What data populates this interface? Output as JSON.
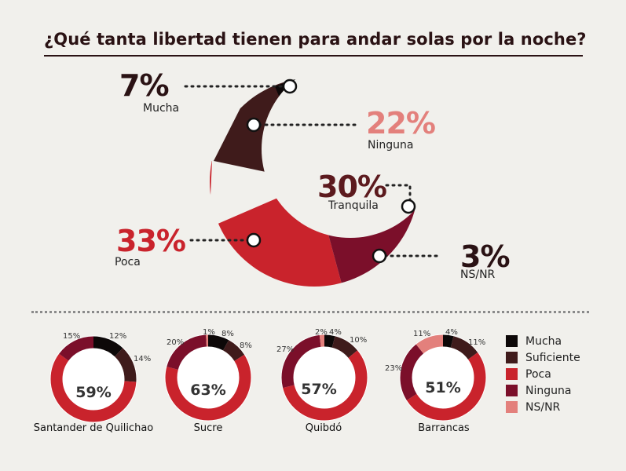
{
  "title": "¿Qué tanta libertad tienen para andar solas por la noche?",
  "colors": {
    "mucha": "#0d0808",
    "suficiente": "#3f1b1b",
    "poca": "#c9232c",
    "ninguna": "#7b0f2a",
    "nsnr": "#e3807c",
    "tranquila": "#5c1a1e",
    "title": "#2a1214"
  },
  "main": {
    "labels": {
      "mucha_pct": "7%",
      "mucha": "Mucha",
      "ninguna_pct": "22%",
      "ninguna": "Ninguna",
      "tranquila_pct": "30%",
      "tranquila": "Tranquila",
      "poca_pct": "33%",
      "poca": "Poca",
      "nsnr_pct": "3%",
      "nsnr": "NS/NR"
    }
  },
  "legend": [
    {
      "label": "Mucha",
      "color": "#0d0808"
    },
    {
      "label": "Suficiente",
      "color": "#3f1b1b"
    },
    {
      "label": "Poca",
      "color": "#c9232c"
    },
    {
      "label": "Ninguna",
      "color": "#7b0f2a"
    },
    {
      "label": "NS/NR",
      "color": "#e3807c"
    }
  ],
  "chart_data": [
    {
      "type": "pie",
      "title": "¿Qué tanta libertad tienen para andar solas por la noche?",
      "categories": [
        "Mucha",
        "Ninguna",
        "Tranquila",
        "Poca",
        "NS/NR"
      ],
      "values": [
        7,
        22,
        30,
        33,
        3
      ]
    },
    {
      "type": "pie",
      "title": "Santander de Quilichao",
      "categories": [
        "Mucha",
        "Suficiente",
        "Poca",
        "Ninguna",
        "NS/NR"
      ],
      "values": [
        12,
        14,
        59,
        15,
        0
      ],
      "labels": {
        "mucha": "12%",
        "suficiente": "14%",
        "ninguna": "15%",
        "center": "59%"
      }
    },
    {
      "type": "pie",
      "title": "Sucre",
      "categories": [
        "Mucha",
        "Suficiente",
        "Poca",
        "Ninguna",
        "NS/NR"
      ],
      "values": [
        8,
        8,
        63,
        20,
        1
      ],
      "labels": {
        "nsnr": "1%",
        "mucha": "8%",
        "suficiente": "8%",
        "ninguna": "20%",
        "center": "63%"
      }
    },
    {
      "type": "pie",
      "title": "Quibdó",
      "categories": [
        "Mucha",
        "Suficiente",
        "Poca",
        "Ninguna",
        "NS/NR"
      ],
      "values": [
        4,
        10,
        57,
        27,
        2
      ],
      "labels": {
        "nsnr": "2%",
        "mucha": "4%",
        "suficiente": "10%",
        "ninguna": "27%",
        "center": "57%"
      }
    },
    {
      "type": "pie",
      "title": "Barrancas",
      "categories": [
        "Mucha",
        "Suficiente",
        "Poca",
        "Ninguna",
        "NS/NR"
      ],
      "values": [
        4,
        11,
        51,
        23,
        11
      ],
      "labels": {
        "nsnr": "11%",
        "mucha": "4%",
        "suficiente": "11%",
        "ninguna": "23%",
        "center": "51%"
      }
    }
  ]
}
